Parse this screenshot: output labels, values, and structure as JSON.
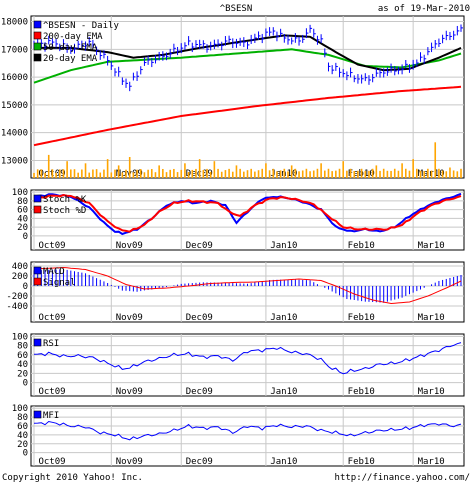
{
  "header": {
    "symbol": "^BSESN",
    "asof": "as of 19-Mar-2010"
  },
  "footer": {
    "copyright": "Copyright 2010 Yahoo! Inc.",
    "url": "http://finance.yahoo.com/"
  },
  "colors": {
    "price": "#0000ff",
    "ema200": "#ff0000",
    "ema50": "#00b000",
    "ema20": "#000000",
    "volume": "#ffa500",
    "stochK": "#0000ff",
    "stochD": "#ff0000",
    "macd": "#0000ff",
    "signal": "#ff0000",
    "rsi": "#0000ff",
    "mfi": "#0000ff",
    "grid": "#c8c8c8"
  },
  "months": [
    "Oct09",
    "Nov09",
    "Dec09",
    "Jan10",
    "Feb10",
    "Mar10"
  ],
  "month_starts": [
    0,
    21,
    40,
    63,
    84,
    103
  ],
  "chart_data": [
    {
      "type": "line",
      "panel": "price",
      "legend": [
        "^BSESN - Daily",
        "200-day EMA",
        "50-day EMA",
        "20-day EMA"
      ],
      "y_ticks": [
        13000,
        14000,
        15000,
        16000,
        17000,
        18000
      ],
      "ylim": [
        12800,
        18200
      ],
      "n_days": 117,
      "series": [
        {
          "name": "^BSESN - Daily",
          "points": [
            [
              0,
              17150
            ],
            [
              5,
              17250
            ],
            [
              10,
              17000
            ],
            [
              15,
              17250
            ],
            [
              20,
              16600
            ],
            [
              24,
              15900
            ],
            [
              26,
              15700
            ],
            [
              30,
              16500
            ],
            [
              36,
              16800
            ],
            [
              42,
              17200
            ],
            [
              48,
              17100
            ],
            [
              53,
              17300
            ],
            [
              57,
              17200
            ],
            [
              62,
              17500
            ],
            [
              65,
              17650
            ],
            [
              68,
              17400
            ],
            [
              72,
              17300
            ],
            [
              75,
              17700
            ],
            [
              78,
              17300
            ],
            [
              80,
              16400
            ],
            [
              83,
              16200
            ],
            [
              87,
              16000
            ],
            [
              90,
              15900
            ],
            [
              95,
              16200
            ],
            [
              100,
              16300
            ],
            [
              104,
              16500
            ],
            [
              107,
              16900
            ],
            [
              110,
              17300
            ],
            [
              116,
              17700
            ]
          ]
        },
        {
          "name": "200-day EMA",
          "points": [
            [
              0,
              13550
            ],
            [
              20,
              14100
            ],
            [
              40,
              14600
            ],
            [
              60,
              14950
            ],
            [
              80,
              15250
            ],
            [
              100,
              15500
            ],
            [
              116,
              15650
            ]
          ]
        },
        {
          "name": "50-day EMA",
          "points": [
            [
              0,
              15800
            ],
            [
              10,
              16250
            ],
            [
              20,
              16550
            ],
            [
              40,
              16700
            ],
            [
              60,
              16900
            ],
            [
              70,
              17000
            ],
            [
              80,
              16800
            ],
            [
              90,
              16400
            ],
            [
              100,
              16350
            ],
            [
              110,
              16600
            ],
            [
              116,
              16850
            ]
          ]
        },
        {
          "name": "20-day EMA",
          "points": [
            [
              0,
              17050
            ],
            [
              10,
              17050
            ],
            [
              20,
              16900
            ],
            [
              27,
              16700
            ],
            [
              35,
              16800
            ],
            [
              45,
              17050
            ],
            [
              60,
              17350
            ],
            [
              68,
              17500
            ],
            [
              75,
              17450
            ],
            [
              82,
              16900
            ],
            [
              88,
              16450
            ],
            [
              95,
              16250
            ],
            [
              102,
              16300
            ],
            [
              110,
              16700
            ],
            [
              116,
              17050
            ]
          ]
        }
      ]
    },
    {
      "type": "bar",
      "panel": "volume",
      "series": [
        {
          "name": "volume",
          "points": [
            [
              4,
              0.55
            ],
            [
              9,
              0.4
            ],
            [
              14,
              0.35
            ],
            [
              20,
              0.45
            ],
            [
              23,
              0.3
            ],
            [
              26,
              0.5
            ],
            [
              34,
              0.3
            ],
            [
              41,
              0.35
            ],
            [
              45,
              0.45
            ],
            [
              49,
              0.4
            ],
            [
              55,
              0.3
            ],
            [
              63,
              0.35
            ],
            [
              70,
              0.3
            ],
            [
              78,
              0.35
            ],
            [
              84,
              0.4
            ],
            [
              93,
              0.3
            ],
            [
              100,
              0.35
            ],
            [
              103,
              0.45
            ],
            [
              109,
              0.85
            ],
            [
              113,
              0.25
            ]
          ]
        }
      ]
    },
    {
      "type": "line",
      "panel": "stochastic",
      "legend": [
        "Stoch %K",
        "Stoch %D"
      ],
      "y_ticks": [
        0,
        20,
        40,
        60,
        80,
        100
      ],
      "ylim": [
        -5,
        105
      ],
      "series": [
        {
          "name": "Stoch %K",
          "points": [
            [
              0,
              90
            ],
            [
              5,
              95
            ],
            [
              10,
              90
            ],
            [
              15,
              65
            ],
            [
              19,
              30
            ],
            [
              22,
              10
            ],
            [
              24,
              5
            ],
            [
              28,
              15
            ],
            [
              32,
              40
            ],
            [
              36,
              70
            ],
            [
              40,
              80
            ],
            [
              44,
              75
            ],
            [
              48,
              80
            ],
            [
              52,
              70
            ],
            [
              55,
              30
            ],
            [
              58,
              55
            ],
            [
              62,
              85
            ],
            [
              66,
              90
            ],
            [
              70,
              85
            ],
            [
              74,
              75
            ],
            [
              78,
              60
            ],
            [
              82,
              20
            ],
            [
              86,
              10
            ],
            [
              90,
              15
            ],
            [
              94,
              10
            ],
            [
              98,
              20
            ],
            [
              102,
              45
            ],
            [
              106,
              65
            ],
            [
              110,
              80
            ],
            [
              114,
              90
            ],
            [
              116,
              95
            ]
          ]
        },
        {
          "name": "Stoch %D",
          "points": [
            [
              0,
              85
            ],
            [
              5,
              92
            ],
            [
              10,
              92
            ],
            [
              15,
              75
            ],
            [
              19,
              40
            ],
            [
              23,
              15
            ],
            [
              26,
              10
            ],
            [
              30,
              25
            ],
            [
              34,
              55
            ],
            [
              38,
              75
            ],
            [
              42,
              80
            ],
            [
              46,
              78
            ],
            [
              50,
              75
            ],
            [
              53,
              55
            ],
            [
              56,
              45
            ],
            [
              60,
              70
            ],
            [
              64,
              85
            ],
            [
              68,
              88
            ],
            [
              72,
              82
            ],
            [
              76,
              72
            ],
            [
              80,
              45
            ],
            [
              84,
              20
            ],
            [
              88,
              15
            ],
            [
              92,
              15
            ],
            [
              96,
              15
            ],
            [
              100,
              25
            ],
            [
              104,
              50
            ],
            [
              108,
              70
            ],
            [
              112,
              82
            ],
            [
              116,
              90
            ]
          ]
        }
      ]
    },
    {
      "type": "line",
      "panel": "macd",
      "legend": [
        "MACD",
        "Signal"
      ],
      "y_ticks": [
        -400,
        -200,
        0,
        200,
        400
      ],
      "ylim": [
        -480,
        480
      ],
      "series": [
        {
          "name": "MACD",
          "points": [
            [
              0,
              380
            ],
            [
              8,
              410
            ],
            [
              14,
              320
            ],
            [
              20,
              100
            ],
            [
              24,
              -80
            ],
            [
              28,
              -120
            ],
            [
              34,
              -60
            ],
            [
              40,
              40
            ],
            [
              46,
              80
            ],
            [
              52,
              80
            ],
            [
              58,
              60
            ],
            [
              64,
              140
            ],
            [
              70,
              160
            ],
            [
              75,
              140
            ],
            [
              80,
              -60
            ],
            [
              85,
              -280
            ],
            [
              90,
              -360
            ],
            [
              95,
              -400
            ],
            [
              100,
              -300
            ],
            [
              105,
              -120
            ],
            [
              110,
              80
            ],
            [
              116,
              240
            ]
          ]
        },
        {
          "name": "Signal",
          "points": [
            [
              0,
              340
            ],
            [
              8,
              370
            ],
            [
              14,
              330
            ],
            [
              20,
              200
            ],
            [
              25,
              30
            ],
            [
              30,
              -60
            ],
            [
              36,
              -40
            ],
            [
              42,
              0
            ],
            [
              48,
              50
            ],
            [
              54,
              70
            ],
            [
              60,
              80
            ],
            [
              66,
              110
            ],
            [
              72,
              140
            ],
            [
              78,
              110
            ],
            [
              82,
              0
            ],
            [
              87,
              -160
            ],
            [
              92,
              -280
            ],
            [
              97,
              -350
            ],
            [
              102,
              -320
            ],
            [
              107,
              -200
            ],
            [
              112,
              -40
            ],
            [
              116,
              100
            ]
          ]
        }
      ]
    },
    {
      "type": "line",
      "panel": "rsi",
      "legend": [
        "RSI"
      ],
      "y_ticks": [
        0,
        20,
        40,
        60,
        80,
        100
      ],
      "ylim": [
        -3,
        105
      ],
      "series": [
        {
          "name": "RSI",
          "points": [
            [
              0,
              60
            ],
            [
              4,
              63
            ],
            [
              8,
              57
            ],
            [
              12,
              58
            ],
            [
              16,
              54
            ],
            [
              20,
              42
            ],
            [
              24,
              30
            ],
            [
              26,
              32
            ],
            [
              30,
              45
            ],
            [
              34,
              52
            ],
            [
              38,
              60
            ],
            [
              42,
              62
            ],
            [
              46,
              55
            ],
            [
              50,
              58
            ],
            [
              54,
              48
            ],
            [
              58,
              68
            ],
            [
              62,
              70
            ],
            [
              66,
              75
            ],
            [
              70,
              66
            ],
            [
              74,
              62
            ],
            [
              78,
              50
            ],
            [
              80,
              35
            ],
            [
              84,
              20
            ],
            [
              86,
              25
            ],
            [
              90,
              30
            ],
            [
              94,
              40
            ],
            [
              98,
              42
            ],
            [
              102,
              50
            ],
            [
              106,
              60
            ],
            [
              110,
              70
            ],
            [
              114,
              82
            ],
            [
              116,
              84
            ]
          ]
        }
      ]
    },
    {
      "type": "line",
      "panel": "mfi",
      "legend": [
        "MFI"
      ],
      "y_ticks": [
        0,
        20,
        40,
        60,
        80,
        100
      ],
      "ylim": [
        -3,
        105
      ],
      "series": [
        {
          "name": "MFI",
          "points": [
            [
              0,
              65
            ],
            [
              5,
              68
            ],
            [
              10,
              60
            ],
            [
              14,
              58
            ],
            [
              18,
              45
            ],
            [
              22,
              40
            ],
            [
              26,
              30
            ],
            [
              30,
              38
            ],
            [
              34,
              42
            ],
            [
              38,
              50
            ],
            [
              42,
              60
            ],
            [
              46,
              55
            ],
            [
              50,
              58
            ],
            [
              54,
              45
            ],
            [
              58,
              60
            ],
            [
              62,
              55
            ],
            [
              66,
              62
            ],
            [
              70,
              58
            ],
            [
              74,
              60
            ],
            [
              78,
              50
            ],
            [
              82,
              45
            ],
            [
              86,
              38
            ],
            [
              90,
              45
            ],
            [
              94,
              50
            ],
            [
              98,
              52
            ],
            [
              102,
              55
            ],
            [
              106,
              62
            ],
            [
              110,
              65
            ],
            [
              114,
              60
            ],
            [
              116,
              62
            ]
          ]
        }
      ]
    }
  ]
}
